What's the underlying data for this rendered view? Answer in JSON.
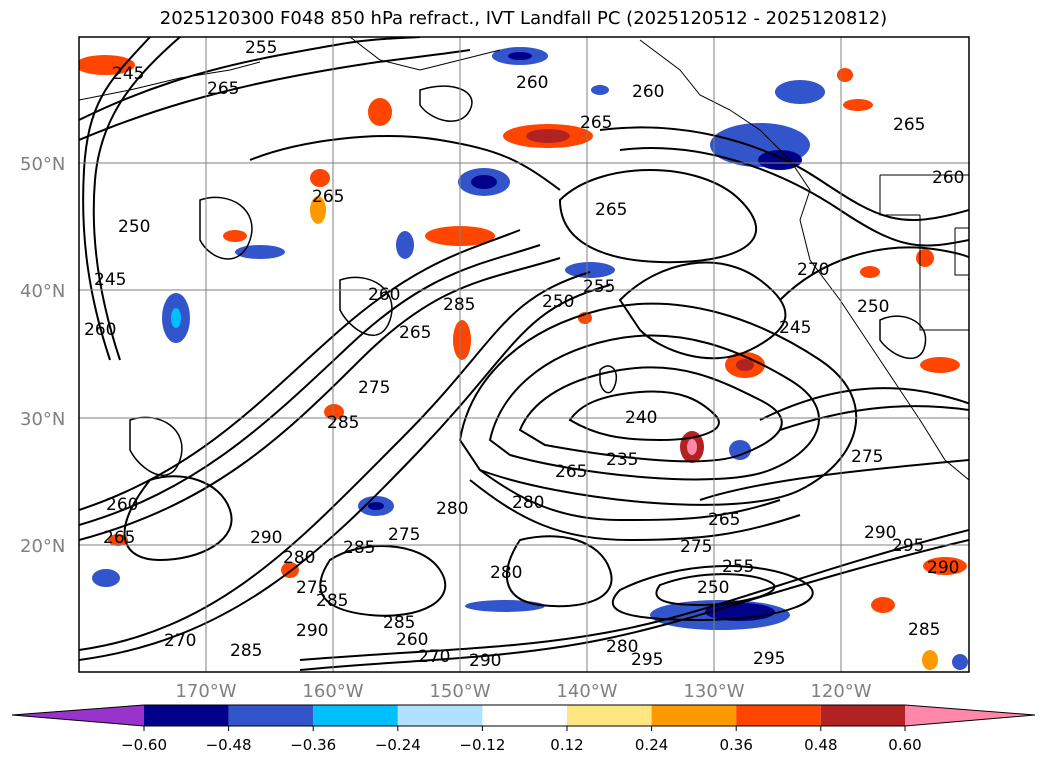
{
  "title": "2025120300 F048 850 hPa refract., IVT Landfall PC (2025120512 - 2025120812)",
  "latitude_labels": [
    "50°N",
    "40°N",
    "30°N",
    "20°N"
  ],
  "longitude_labels": [
    "170°W",
    "160°W",
    "150°W",
    "140°W",
    "130°W",
    "120°W"
  ],
  "contour_labels": [
    "255",
    "245",
    "265",
    "260",
    "260",
    "265",
    "265",
    "265",
    "250",
    "245",
    "260",
    "260",
    "285",
    "265",
    "250",
    "255",
    "275",
    "285",
    "240",
    "235",
    "265",
    "280",
    "280",
    "275",
    "290",
    "260",
    "265",
    "280",
    "285",
    "275",
    "285",
    "290",
    "285",
    "260",
    "270",
    "280",
    "275",
    "255",
    "250",
    "265",
    "280",
    "295",
    "295",
    "285",
    "290",
    "275",
    "290",
    "295",
    "290",
    "250",
    "245",
    "270",
    "265",
    "260",
    "270",
    "285"
  ],
  "colorbar": {
    "ticks": [
      "−0.60",
      "−0.48",
      "−0.36",
      "−0.24",
      "−0.12",
      "0.12",
      "0.24",
      "0.36",
      "0.48",
      "0.60"
    ],
    "colors": [
      "#9933cc",
      "#00008b",
      "#3355cc",
      "#00bfff",
      "#b0e2ff",
      "#ffffff",
      "#ffe680",
      "#ff9900",
      "#ff4500",
      "#b22222",
      "#ff88aa"
    ]
  }
}
